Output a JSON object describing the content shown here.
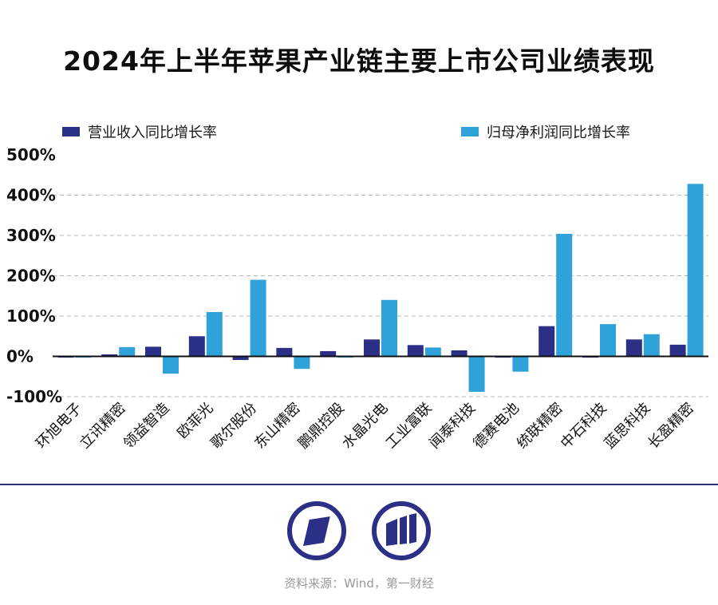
{
  "title": "2024年上半年苹果产业链主要上市公司业绩表现",
  "legend": {
    "revenue": "营业收入同比增长率",
    "profit": "归母净利润同比增长率"
  },
  "colors": {
    "revenue": "#2b2f86",
    "profit": "#2fa3d9",
    "axis": "#111111",
    "grid": "#b5b5b5"
  },
  "chart_data": {
    "type": "bar",
    "title": "2024年上半年苹果产业链主要上市公司业绩表现",
    "categories": [
      "环旭电子",
      "立讯精密",
      "领益智造",
      "欧菲光",
      "歌尔股份",
      "东山精密",
      "鹏鼎控股",
      "水晶光电",
      "工业富联",
      "闻泰科技",
      "德赛电池",
      "统联精密",
      "中石科技",
      "蓝思科技",
      "长盈精密"
    ],
    "series": [
      {
        "name": "营业收入同比增长率",
        "values": [
          -1,
          5,
          24,
          50,
          -9,
          21,
          13,
          42,
          28,
          15,
          -2,
          75,
          -1,
          42,
          29
        ]
      },
      {
        "name": "归母净利润同比增长率",
        "values": [
          -2,
          23,
          -43,
          110,
          190,
          -31,
          -2,
          140,
          22,
          -88,
          -38,
          304,
          80,
          55,
          428
        ]
      }
    ],
    "yticks": [
      "500%",
      "400%",
      "300%",
      "200%",
      "100%",
      "0%",
      "-100%"
    ],
    "ylim": [
      -100,
      500
    ],
    "grid": true,
    "legend_position": "top"
  },
  "footer": {
    "source": "资料来源：Wind，第一财经"
  },
  "logos": [
    "yicai-logo-icon",
    "yicai-bars-logo-icon"
  ]
}
